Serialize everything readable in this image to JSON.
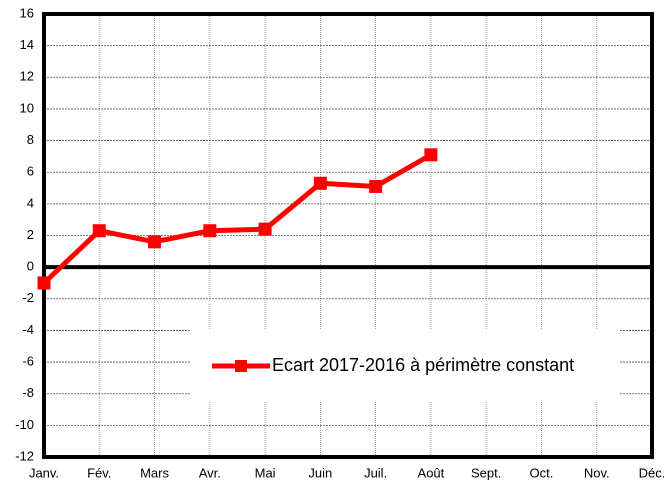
{
  "chart_data": {
    "type": "line",
    "categories": [
      "Janv.",
      "Fév.",
      "Mars",
      "Avr.",
      "Mai",
      "Juin",
      "Juil.",
      "Août",
      "Sept.",
      "Oct.",
      "Nov.",
      "Déc."
    ],
    "series": [
      {
        "name": "Ecart 2017-2016 à périmètre constant",
        "color": "#ff0000",
        "values": [
          -1.0,
          2.3,
          1.6,
          2.3,
          2.4,
          5.3,
          5.1,
          7.1,
          null,
          null,
          null,
          null
        ]
      }
    ],
    "ylim": [
      -12,
      16
    ],
    "yticks": [
      -12,
      -10,
      -8,
      -6,
      -4,
      -2,
      0,
      2,
      4,
      6,
      8,
      10,
      12,
      14,
      16
    ],
    "grid": true,
    "legend": "lower right"
  }
}
